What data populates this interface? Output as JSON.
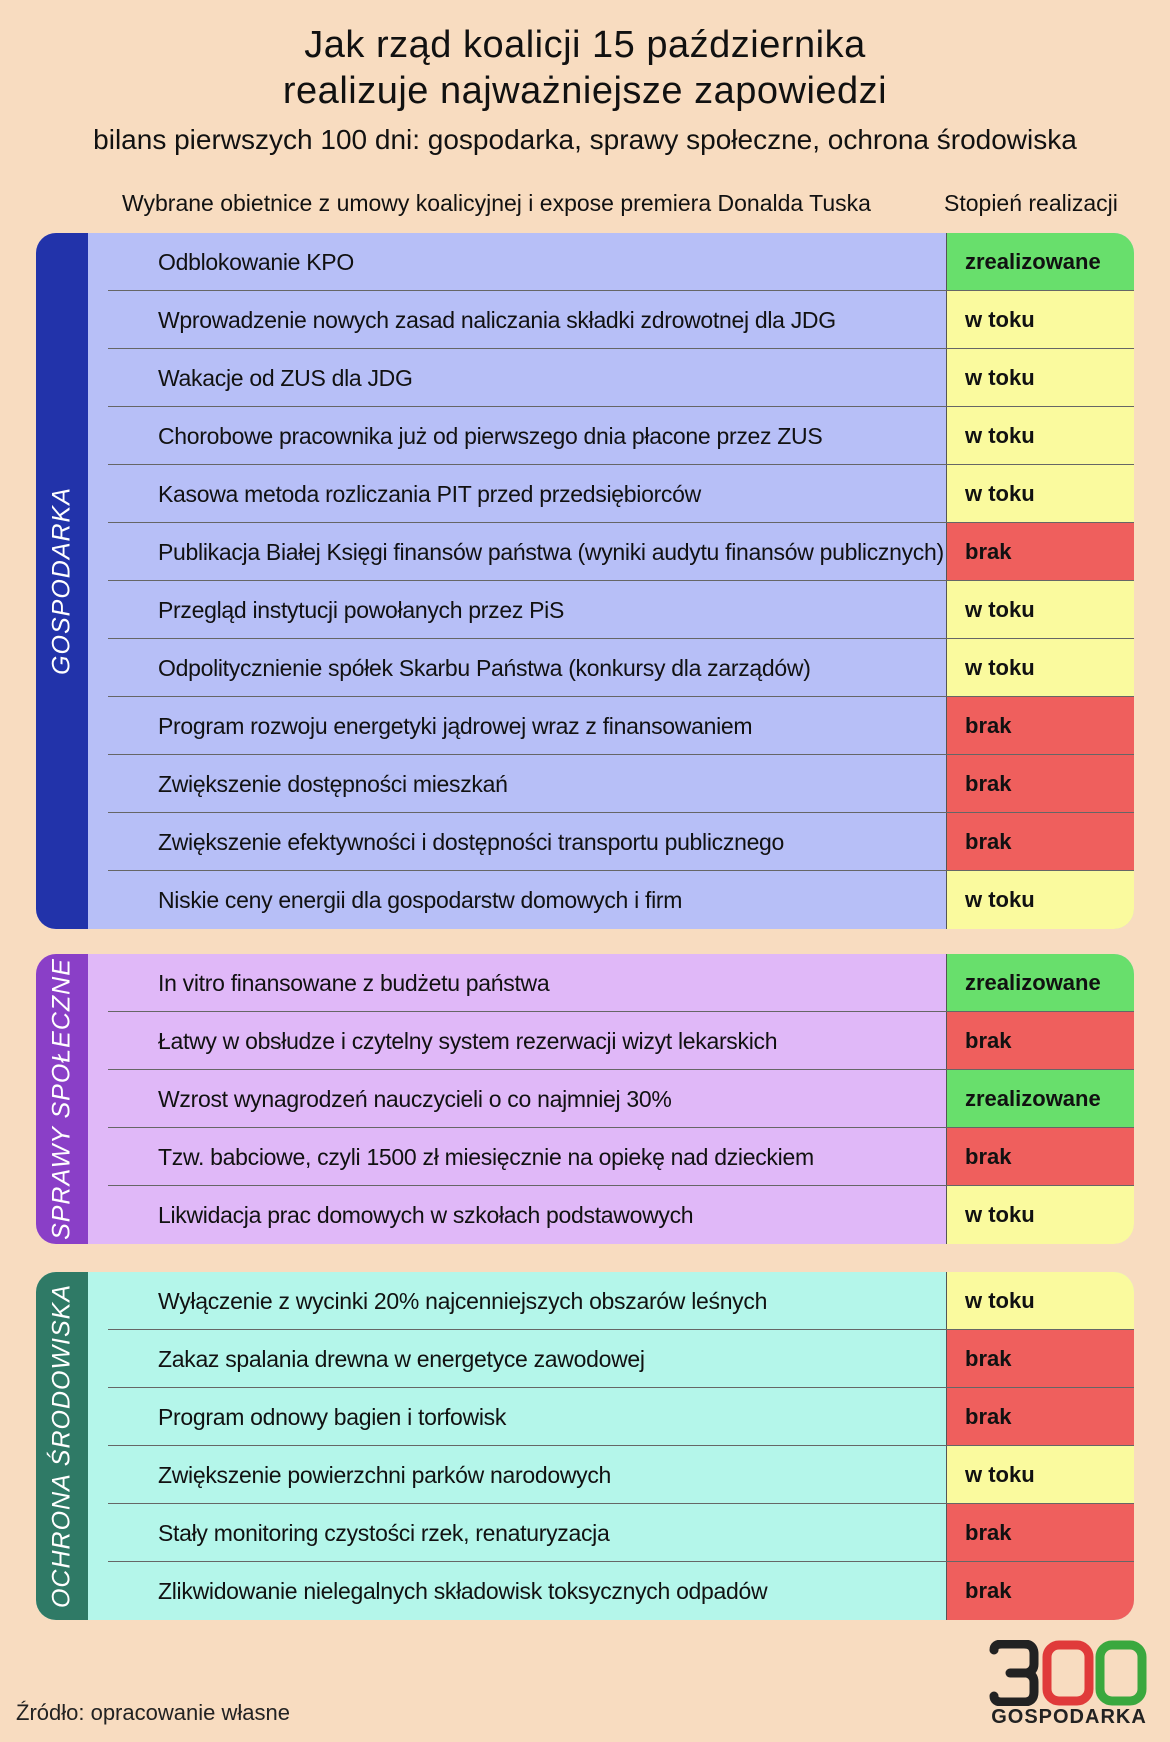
{
  "header": {
    "title_line1": "Jak rząd koalicji 15 października",
    "title_line2": "realizuje najważniejsze zapowiedzi",
    "subtitle": "bilans pierwszych 100 dni: gospodarka, sprawy społeczne, ochrona środowiska",
    "col_left": "Wybrane obietnice z umowy koalicyjnej i expose premiera Donalda Tuska",
    "col_right": "Stopień realizacji"
  },
  "colors": {
    "zrealizowane": "#68df6c",
    "w toku": "#fafa9e",
    "brak": "#ef5f5d",
    "gospodarka_label": "#2233aa",
    "gospodarka_bg": "#b7bff7",
    "spoleczne_label": "#8a3fc7",
    "spoleczne_bg": "#e0b8f8",
    "srodowisko_label": "#2f7a66",
    "srodowisko_bg": "#b4f6ea"
  },
  "sections": [
    {
      "label": "GOSPODARKA",
      "items": [
        {
          "text": "Odblokowanie KPO",
          "status": "zrealizowane"
        },
        {
          "text": "Wprowadzenie nowych zasad naliczania składki zdrowotnej dla JDG",
          "status": "w toku"
        },
        {
          "text": "Wakacje od ZUS dla JDG",
          "status": "w toku"
        },
        {
          "text": "Chorobowe pracownika już od pierwszego dnia płacone przez ZUS",
          "status": "w toku"
        },
        {
          "text": "Kasowa metoda rozliczania PIT przed przedsiębiorców",
          "status": "w toku"
        },
        {
          "text": "Publikacja Białej Księgi finansów państwa (wyniki audytu finansów publicznych)",
          "status": "brak"
        },
        {
          "text": "Przegląd instytucji powołanych przez PiS",
          "status": "w toku"
        },
        {
          "text": "Odpolitycznienie spółek Skarbu Państwa (konkursy dla zarządów)",
          "status": "w toku"
        },
        {
          "text": "Program rozwoju energetyki jądrowej wraz z finansowaniem",
          "status": "brak"
        },
        {
          "text": "Zwiększenie dostępności mieszkań",
          "status": "brak"
        },
        {
          "text": "Zwiększenie efektywności i dostępności transportu publicznego",
          "status": "brak"
        },
        {
          "text": "Niskie ceny energii dla gospodarstw domowych i firm",
          "status": "w toku"
        }
      ]
    },
    {
      "label": "SPRAWY SPOŁECZNE",
      "items": [
        {
          "text": "In vitro finansowane z budżetu państwa",
          "status": "zrealizowane"
        },
        {
          "text": "Łatwy w obsłudze i czytelny system rezerwacji wizyt lekarskich",
          "status": "brak"
        },
        {
          "text": "Wzrost wynagrodzeń nauczycieli o co najmniej 30%",
          "status": "zrealizowane"
        },
        {
          "text": "Tzw. babciowe, czyli 1500 zł miesięcznie na opiekę nad dzieckiem",
          "status": "brak"
        },
        {
          "text": "Likwidacja prac domowych w szkołach podstawowych",
          "status": "w toku"
        }
      ]
    },
    {
      "label": "OCHRONA ŚRODOWISKA",
      "items": [
        {
          "text": "Wyłączenie z wycinki 20% najcenniejszych obszarów leśnych",
          "status": "w toku"
        },
        {
          "text": "Zakaz spalania drewna w energetyce zawodowej",
          "status": "brak"
        },
        {
          "text": "Program odnowy bagien i torfowisk",
          "status": "brak"
        },
        {
          "text": "Zwiększenie powierzchni parków narodowych",
          "status": "w toku"
        },
        {
          "text": "Stały monitoring czystości rzek, renaturyzacja",
          "status": "brak"
        },
        {
          "text": "Zlikwidowanie nielegalnych składowisk toksycznych odpadów",
          "status": "brak"
        }
      ]
    }
  ],
  "footer": {
    "source": "Źródło: opracowanie własne",
    "logo_number": "300",
    "logo_word": "GOSPODARKA"
  }
}
